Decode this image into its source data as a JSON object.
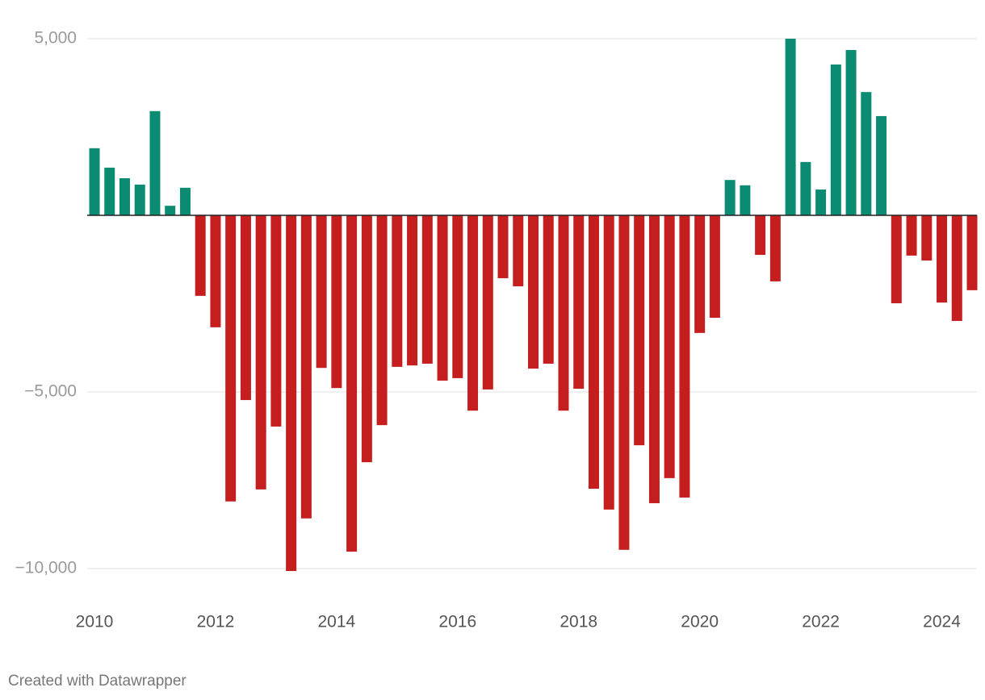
{
  "chart_data": {
    "type": "bar",
    "categories": [
      "2010",
      null,
      null,
      null,
      null,
      null,
      null,
      null,
      "2012",
      null,
      null,
      null,
      null,
      null,
      null,
      null,
      "2014",
      null,
      null,
      null,
      null,
      null,
      null,
      null,
      "2016",
      null,
      null,
      null,
      null,
      null,
      null,
      null,
      "2018",
      null,
      null,
      null,
      null,
      null,
      null,
      null,
      "2020",
      null,
      null,
      null,
      null,
      null,
      null,
      null,
      "2022",
      null,
      null,
      null,
      null,
      null,
      null,
      null,
      "2024",
      null,
      null
    ],
    "values": [
      1900,
      1350,
      1050,
      870,
      2950,
      270,
      780,
      -2280,
      -3170,
      -8100,
      -5230,
      -7760,
      -5980,
      -10070,
      -8580,
      -4320,
      -4890,
      -9520,
      -6990,
      -5940,
      -4290,
      -4250,
      -4200,
      -4680,
      -4610,
      -5530,
      -4930,
      -1780,
      -2010,
      -4340,
      -4200,
      -5530,
      -4910,
      -7740,
      -8330,
      -9470,
      -6510,
      -8150,
      -7440,
      -7990,
      -3330,
      -2900,
      1000,
      850,
      -1120,
      -1870,
      5000,
      1510,
      730,
      4270,
      4680,
      3490,
      2810,
      -2490,
      -1140,
      -1280,
      -2470,
      -2990,
      -2120
    ],
    "positive_color": "#0b8c72",
    "negative_color": "#c41e1f",
    "ylim": [
      -10000,
      5000
    ],
    "yticks": [
      {
        "value": 5000,
        "label": "5,000"
      },
      {
        "value": -5000,
        "label": "−5,000"
      },
      {
        "value": -10000,
        "label": "−10,000"
      }
    ],
    "grid": true,
    "footer": "Created with Datawrapper"
  }
}
